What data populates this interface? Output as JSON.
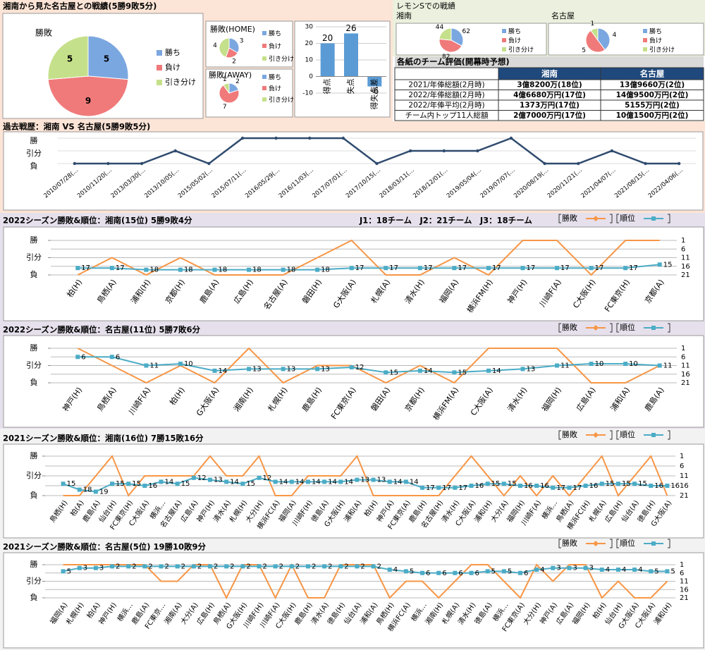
{
  "summary": {
    "title": "湘南から見た名古屋との戦績(5勝9敗5分)"
  },
  "lemon": {
    "title": "レモンSでの戦績"
  },
  "table": {
    "title": "各紙のチーム評価(開幕時予想)",
    "columns": [
      "湘南",
      "名古屋"
    ],
    "rows": [
      [
        "2021/年俸総額(2月時)",
        "3億8200万(18位)",
        "13億9660万(2位)"
      ],
      [
        "2022/年俸総額(2月時)",
        "4億6680万円(17位)",
        "14億9500万円(2位)"
      ],
      [
        "2022/年俸平均(2月時)",
        "1373万円(17位)",
        "5155万円(2位)"
      ],
      [
        "チーム内トップ11人総額",
        "2億7000万円(17位)",
        "10億1500万円(2位)"
      ]
    ]
  },
  "chart_data": [
    {
      "type": "pie",
      "title": "勝敗",
      "categories": [
        "勝ち",
        "負け",
        "引き分け"
      ],
      "values": [
        5,
        9,
        5
      ],
      "colors": [
        "#7ba7e0",
        "#f07a7a",
        "#c5e08a"
      ]
    },
    {
      "type": "pie",
      "title": "勝敗(HOME)",
      "categories": [
        "勝ち",
        "負け",
        "引き分け"
      ],
      "values": [
        3,
        2,
        4
      ],
      "colors": [
        "#7ba7e0",
        "#f07a7a",
        "#c5e08a"
      ]
    },
    {
      "type": "pie",
      "title": "勝敗(AWAY)",
      "categories": [
        "勝ち",
        "負け",
        "引き分け"
      ],
      "values": [
        2,
        7,
        1
      ],
      "colors": [
        "#7ba7e0",
        "#f07a7a",
        "#c5e08a"
      ]
    },
    {
      "type": "bar",
      "categories": [
        "得点",
        "失点",
        "得失点差"
      ],
      "values": [
        20,
        26,
        -6
      ],
      "color": "#5b9bd5",
      "ylim": [
        -10,
        30
      ],
      "yticks": [
        -10,
        0,
        10,
        20,
        30
      ],
      "grid": true
    },
    {
      "type": "pie",
      "title": "湘南",
      "categories": [
        "勝ち",
        "負け",
        "引き分け"
      ],
      "values": [
        62,
        82,
        44
      ],
      "colors": [
        "#7ba7e0",
        "#f07a7a",
        "#c5e08a"
      ]
    },
    {
      "type": "pie",
      "title": "名古屋",
      "categories": [
        "勝ち",
        "負け",
        "引き分け"
      ],
      "values": [
        4,
        5,
        1
      ],
      "colors": [
        "#7ba7e0",
        "#f07a7a",
        "#c5e08a"
      ]
    },
    {
      "type": "line",
      "title": "過去戦歴：湘南 VS 名古屋(5勝9敗5分)",
      "categories": [
        "2010/07/28(…",
        "2010/11/20(…",
        "2013/03/30(…",
        "2013/10/05(…",
        "2015/05/02(…",
        "2015/07/11(…",
        "2016/05/29(…",
        "2016/11/03(…",
        "2017/07/01(…",
        "2017/10/15(…",
        "2018/03/11(…",
        "2018/12/01(…",
        "2019/05/04(…",
        "2019/07/07(…",
        "2020/08/19(…",
        "2020/11/21(…",
        "2021/04/07(…",
        "2021/08/15(…",
        "2022/04/06(…"
      ],
      "values": [
        0,
        0,
        0,
        1,
        0,
        2,
        2,
        2,
        2,
        0,
        1,
        1,
        1,
        2,
        0,
        0,
        1,
        0,
        0
      ],
      "color": "#2f4b6e",
      "ylim": [
        0,
        2
      ],
      "yticks": [
        {
          "value": 0,
          "label": "負"
        },
        {
          "value": 1,
          "label": "引分"
        },
        {
          "value": 2,
          "label": "勝"
        }
      ],
      "grid": true
    },
    {
      "type": "combo",
      "title": "2022シーズン勝敗&順位：湘南(15位) 5勝9敗4分",
      "subtitle": "J1：18チーム　J2：21チーム　J3：18チーム",
      "categories": [
        "柏(H)",
        "鳥栖(A)",
        "浦和(H)",
        "京都(H)",
        "鹿島(A)",
        "広島(H)",
        "名古屋(A)",
        "磐田(H)",
        "G大阪(A)",
        "札幌(A)",
        "清水(H)",
        "福岡(A)",
        "横浜FM(H)",
        "神戸(H)",
        "川崎F(A)",
        "C大阪(H)",
        "FC東京(H)",
        "京都(A)"
      ],
      "series": [
        {
          "name": "勝敗",
          "color": "#f79646",
          "values": [
            0,
            1,
            0,
            1,
            0,
            0,
            0,
            1,
            2,
            0,
            0,
            1,
            0,
            2,
            2,
            0,
            2,
            2
          ]
        },
        {
          "name": "順位",
          "color": "#4bacc6",
          "axis": "y2",
          "values": [
            17,
            17,
            18,
            18,
            18,
            18,
            18,
            18,
            17,
            17,
            17,
            17,
            17,
            17,
            17,
            17,
            17,
            15
          ]
        }
      ],
      "ylim": [
        0,
        2
      ],
      "yticks": [
        {
          "value": 0,
          "label": "負"
        },
        {
          "value": 1,
          "label": "引分"
        },
        {
          "value": 2,
          "label": "勝"
        }
      ],
      "y2lim": [
        21,
        1
      ],
      "y2ticks": [
        1,
        6,
        11,
        16,
        21
      ],
      "grid": true
    },
    {
      "type": "combo",
      "title": "2022シーズン勝敗&順位：名古屋(11位) 5勝7敗6分",
      "categories": [
        "神戸(H)",
        "鳥栖(A)",
        "川崎F(A)",
        "柏(H)",
        "G大阪(A)",
        "湘南(H)",
        "札幌(H)",
        "鹿島(H)",
        "FC東京(A)",
        "磐田(A)",
        "京都(H)",
        "横浜FM(A)",
        "C大阪(A)",
        "清水(H)",
        "福岡(H)",
        "広島(A)",
        "浦和(A)",
        "鹿島(A)"
      ],
      "series": [
        {
          "name": "勝敗",
          "color": "#f79646",
          "values": [
            2,
            1,
            0,
            1,
            0,
            2,
            0,
            1,
            1,
            0,
            1,
            0,
            2,
            2,
            2,
            0,
            0,
            1
          ]
        },
        {
          "name": "順位",
          "color": "#4bacc6",
          "axis": "y2",
          "values": [
            6,
            6,
            11,
            10,
            14,
            13,
            13,
            13,
            12,
            15,
            14,
            15,
            14,
            13,
            11,
            10,
            10,
            11
          ]
        }
      ],
      "ylim": [
        0,
        2
      ],
      "yticks": [
        {
          "value": 0,
          "label": "負"
        },
        {
          "value": 1,
          "label": "引分"
        },
        {
          "value": 2,
          "label": "勝"
        }
      ],
      "y2lim": [
        21,
        1
      ],
      "y2ticks": [
        1,
        6,
        11,
        16,
        21
      ],
      "grid": true
    },
    {
      "type": "combo",
      "title": "2021シーズン勝敗&順位：湘南(16位) 7勝15敗16分",
      "categories": [
        "鳥栖(H)",
        "柏(A)",
        "鹿島(A)",
        "仙台(H)",
        "FC東京(H)",
        "C大阪(A)",
        "横浜…",
        "名古屋(A)",
        "広島(A)",
        "神戸(H)",
        "清水(A)",
        "札幌(H)",
        "大分(H)",
        "横浜FC(A)",
        "福岡(A)",
        "川崎F(H)",
        "徳島(A)",
        "G大阪(H)",
        "浦和(A)",
        "柏(H)",
        "神戸(A)",
        "FC東京(A)",
        "鹿島(H)",
        "名古屋(H)",
        "清水(H)",
        "C大阪(A)",
        "浦和(H)",
        "大分(A)",
        "福岡(H)",
        "川崎F(A)",
        "横浜…",
        "鳥栖(A)",
        "横浜FC(H)",
        "札幌(A)",
        "広島(H)",
        "仙台(A)",
        "徳島(H)",
        "G大阪(A)"
      ],
      "series": [
        {
          "name": "勝敗",
          "color": "#f79646",
          "values": [
            0,
            0,
            1,
            2,
            0,
            1,
            1,
            1,
            1,
            2,
            1,
            1,
            2,
            0,
            0,
            1,
            1,
            1,
            2,
            0,
            0,
            0,
            0,
            0,
            1,
            2,
            1,
            0,
            1,
            0,
            1,
            0,
            1,
            2,
            0,
            1,
            2,
            0
          ]
        },
        {
          "name": "順位",
          "color": "#4bacc6",
          "axis": "y2",
          "values": [
            15,
            18,
            19,
            15,
            15,
            16,
            14,
            15,
            12,
            13,
            14,
            15,
            12,
            14,
            14,
            14,
            14,
            14,
            13,
            13,
            14,
            14,
            17,
            17,
            17,
            16,
            15,
            15,
            16,
            16,
            17,
            17,
            16,
            15,
            15,
            15,
            16,
            16
          ]
        }
      ],
      "ylim": [
        0,
        2
      ],
      "yticks": [
        {
          "value": 0,
          "label": "負"
        },
        {
          "value": 1,
          "label": "引分"
        },
        {
          "value": 2,
          "label": "勝"
        }
      ],
      "y2lim": [
        21,
        1
      ],
      "y2ticks": [
        1,
        6,
        11,
        16,
        21
      ],
      "grid": true
    },
    {
      "type": "combo",
      "title": "2021シーズン勝敗&順位：名古屋(5位) 19勝10敗9分",
      "categories": [
        "福岡(A)",
        "札幌(H)",
        "柏(A)",
        "神戸(H)",
        "横浜…",
        "鹿島(A)",
        "FC東京…",
        "湘南(A)",
        "大分(A)",
        "広島(H)",
        "鳥栖(A)",
        "G大阪(H)",
        "川崎F(H)",
        "川崎F(A)",
        "C大阪(H)",
        "鹿島(H)",
        "清水(A)",
        "徳島(H)",
        "仙台(A)",
        "浦和(A)",
        "鳥栖(H)",
        "横浜FC(A)",
        "横浜…",
        "湘南(H)",
        "札幌(A)",
        "清水(H)",
        "徳島(A)",
        "横浜…",
        "FC東京(A)",
        "大分(H)",
        "神戸(A)",
        "広島(A)",
        "福岡(H)",
        "柏(H)",
        "仙台(H)",
        "G大阪(A)",
        "C大阪(A)",
        "浦和(H)"
      ],
      "series": [
        {
          "name": "勝敗",
          "color": "#f79646",
          "values": [
            2,
            2,
            2,
            2,
            2,
            2,
            1,
            1,
            2,
            2,
            0,
            2,
            2,
            0,
            2,
            0,
            0,
            2,
            2,
            2,
            0,
            1,
            1,
            0,
            1,
            2,
            2,
            1,
            0,
            2,
            1,
            2,
            2,
            0,
            1,
            0,
            0,
            1
          ]
        },
        {
          "name": "順位",
          "color": "#4bacc6",
          "axis": "y2",
          "values": [
            5,
            3,
            3,
            2,
            2,
            2,
            2,
            2,
            2,
            2,
            2,
            2,
            2,
            2,
            2,
            2,
            2,
            2,
            2,
            2,
            4,
            5,
            6,
            6,
            6,
            6,
            5,
            5,
            6,
            4,
            3,
            3,
            3,
            4,
            4,
            4,
            5,
            5
          ]
        }
      ],
      "ylim": [
        0,
        2
      ],
      "yticks": [
        {
          "value": 0,
          "label": "負"
        },
        {
          "value": 1,
          "label": "引分"
        },
        {
          "value": 2,
          "label": "勝"
        }
      ],
      "y2lim": [
        21,
        1
      ],
      "y2ticks": [
        1,
        6,
        11,
        16,
        21
      ],
      "grid": true
    }
  ]
}
